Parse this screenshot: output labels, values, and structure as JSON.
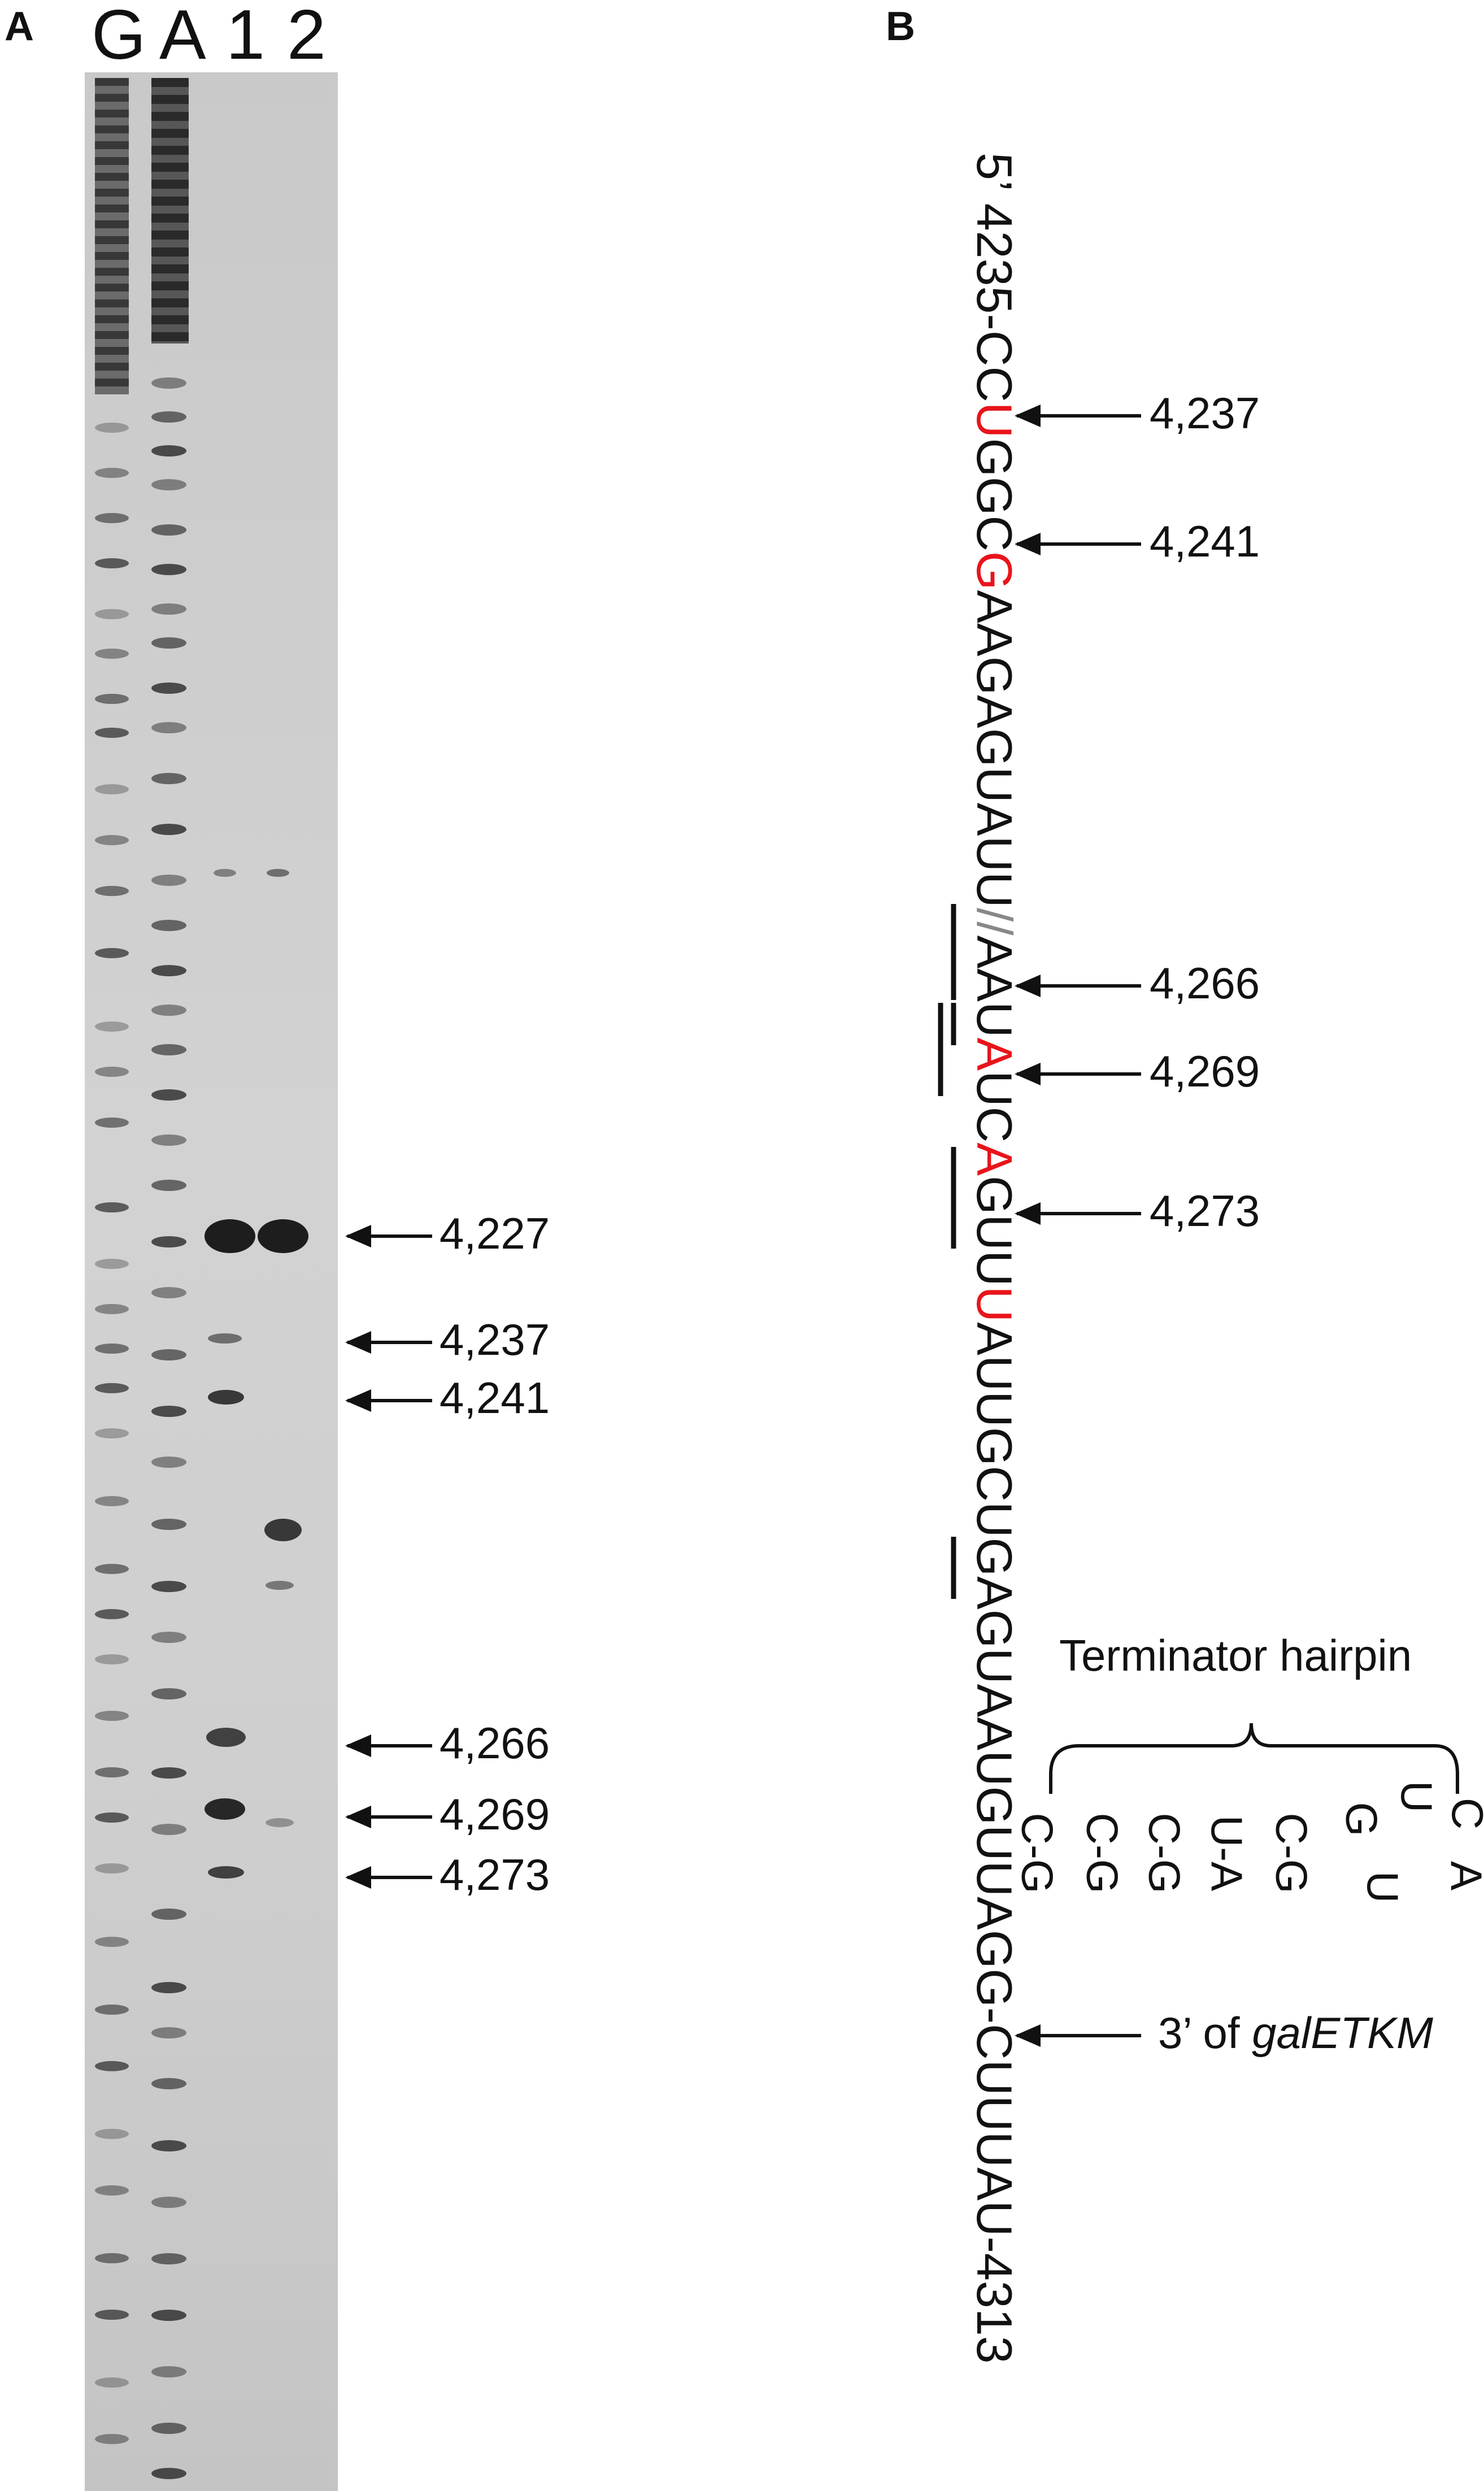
{
  "panel_a": {
    "label": "A",
    "lanes": [
      "G",
      "A",
      "1",
      "2"
    ],
    "annotations": [
      "4,227",
      "4,237",
      "4,241",
      "4,266",
      "4,269",
      "4,273"
    ]
  },
  "panel_b": {
    "label": "B",
    "sequence": {
      "five_prime": "5’",
      "start": "4235-",
      "segment1": "CC",
      "red1": "U",
      "segment2": "GGC",
      "red2": "G",
      "segment3": "AAGAGUAUU",
      "break_mark": "//",
      "segment4": "AAU",
      "red3": "A",
      "segment5": "UC",
      "red4": "A",
      "segment6": "GUU",
      "red5": "U",
      "segment7": "AUUGCUGAGUAAUGUUAGG-CUUUAU-4313"
    },
    "annotations": [
      {
        "label": "4,237"
      },
      {
        "label": "4,241"
      },
      {
        "label": "4,266"
      },
      {
        "label": "4,269"
      },
      {
        "label": "4,273"
      },
      {
        "label_prefix": "3’ of ",
        "label_italic": "galETKM"
      }
    ],
    "hairpin": {
      "title": "Terminator hairpin",
      "pairs": [
        "C-G",
        "C-G",
        "C-G",
        "U-A",
        "C-G"
      ],
      "loop": [
        "G",
        "U",
        "C",
        "A",
        "U"
      ]
    },
    "colors": {
      "highlight": "#e8141b",
      "text": "#111111"
    }
  }
}
